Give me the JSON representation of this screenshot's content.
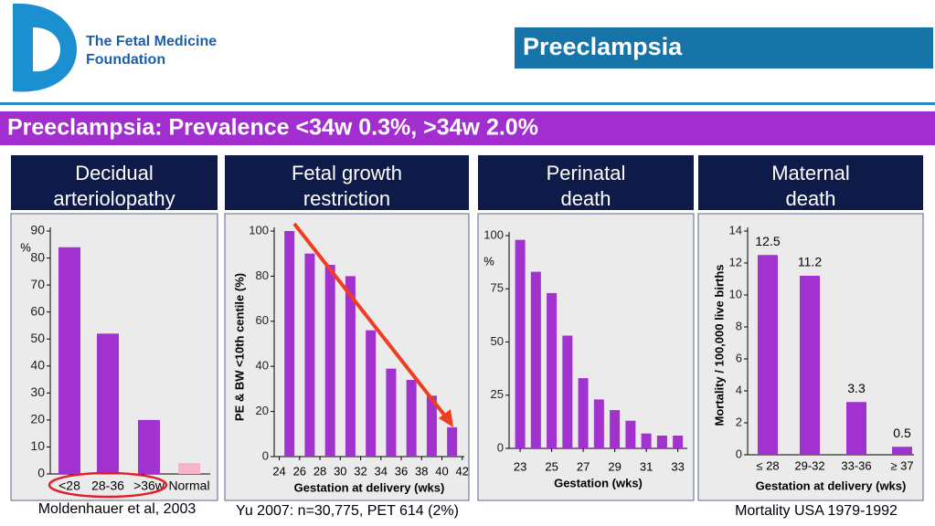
{
  "header": {
    "org_lines": [
      "The Fetal Medicine Foundation"
    ],
    "org_line1": "The Fetal Medicine",
    "org_line2": "Foundation",
    "title": "Preeclampsia",
    "banner": "Preeclampsia: Prevalence <34w 0.3%, >34w 2.0%"
  },
  "chart_data": [
    {
      "type": "bar",
      "title_lines": [
        "Decidual",
        "arteriolopathy"
      ],
      "ylabel": "%",
      "categories": [
        "<28",
        "28-36",
        ">36w",
        "Normal"
      ],
      "values": [
        84,
        52,
        20,
        4
      ],
      "colors": [
        "#a232cf",
        "#a232cf",
        "#a232cf",
        "#f7b3cc"
      ],
      "ylim": [
        0,
        90
      ],
      "yticks": [
        0,
        10,
        20,
        30,
        40,
        50,
        60,
        70,
        80,
        90
      ],
      "caption": "Moldenhauer et al, 2003"
    },
    {
      "type": "bar",
      "title_lines": [
        "Fetal growth",
        "restriction"
      ],
      "ylabel": "PE & BW <10th centile (%)",
      "xlabel": "Gestation at delivery (wks)",
      "x": [
        25,
        27,
        29,
        31,
        33,
        35,
        37,
        39,
        41
      ],
      "values": [
        100,
        90,
        85,
        80,
        56,
        39,
        34,
        27,
        13
      ],
      "color": "#a232cf",
      "xlim": [
        23.5,
        42.2
      ],
      "xticks": [
        24,
        26,
        28,
        30,
        32,
        34,
        36,
        38,
        40,
        42
      ],
      "ylim": [
        0,
        100
      ],
      "yticks": [
        0,
        20,
        40,
        60,
        80,
        100
      ],
      "caption": "Yu 2007: n=30,775, PET 614 (2%)"
    },
    {
      "type": "bar",
      "title_lines": [
        "Perinatal",
        "death"
      ],
      "ylabel": "%",
      "xlabel": "Gestation (wks)",
      "x": [
        23,
        24,
        25,
        26,
        27,
        28,
        29,
        30,
        31,
        32,
        33
      ],
      "values": [
        98,
        83,
        73,
        53,
        33,
        23,
        18,
        13,
        7,
        6,
        6
      ],
      "color": "#a232cf",
      "xlim": [
        22.3,
        33.6
      ],
      "xticks": [
        23,
        25,
        27,
        29,
        31,
        33
      ],
      "ylim": [
        0,
        100
      ],
      "yticks": [
        0,
        25,
        50,
        75,
        100
      ]
    },
    {
      "type": "bar",
      "title_lines": [
        "Maternal",
        "death"
      ],
      "ylabel": "Mortality / 100,000 live births",
      "xlabel": "Gestation at delivery (wks)",
      "categories": [
        "≤ 28",
        "29-32",
        "33-36",
        "≥ 37"
      ],
      "values": [
        12.5,
        11.2,
        3.3,
        0.5
      ],
      "data_labels": true,
      "color": "#a232cf",
      "ylim": [
        0,
        14
      ],
      "yticks": [
        0,
        2,
        4,
        6,
        8,
        10,
        12,
        14
      ],
      "caption": "Mortality USA 1979-1992"
    }
  ]
}
